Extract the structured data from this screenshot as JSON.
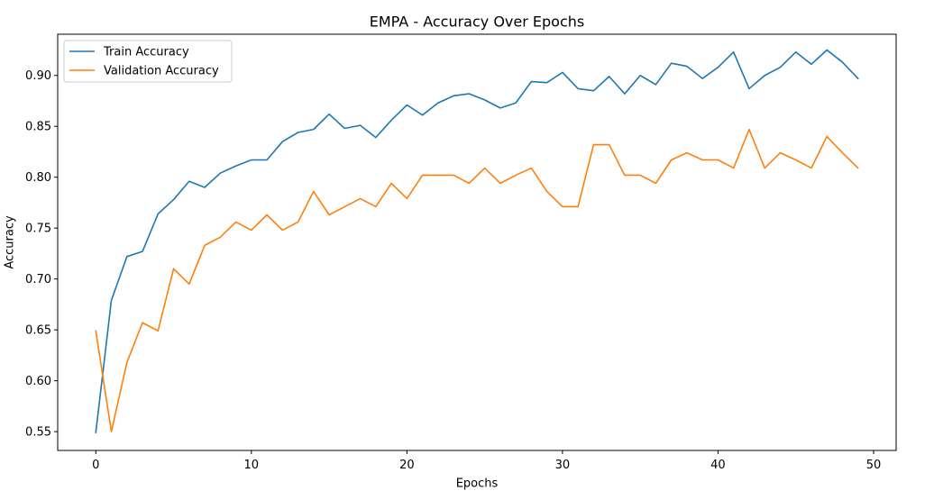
{
  "chart_data": {
    "type": "line",
    "title": "EMPA - Accuracy Over Epochs",
    "xlabel": "Epochs",
    "ylabel": "Accuracy",
    "xlim": [
      -2.45,
      51.45
    ],
    "ylim": [
      0.5315,
      0.9405
    ],
    "xticks": [
      0,
      10,
      20,
      30,
      40,
      50
    ],
    "yticks": [
      0.55,
      0.6,
      0.65,
      0.7,
      0.75,
      0.8,
      0.85,
      0.9
    ],
    "xtick_labels": [
      "0",
      "10",
      "20",
      "30",
      "40",
      "50"
    ],
    "ytick_labels": [
      "0.55",
      "0.60",
      "0.65",
      "0.70",
      "0.75",
      "0.80",
      "0.85",
      "0.90"
    ],
    "grid": false,
    "legend_position": "top-left",
    "x": [
      0,
      1,
      2,
      3,
      4,
      5,
      6,
      7,
      8,
      9,
      10,
      11,
      12,
      13,
      14,
      15,
      16,
      17,
      18,
      19,
      20,
      21,
      22,
      23,
      24,
      25,
      26,
      27,
      28,
      29,
      30,
      31,
      32,
      33,
      34,
      35,
      36,
      37,
      38,
      39,
      40,
      41,
      42,
      43,
      44,
      45,
      46,
      47,
      48,
      49
    ],
    "series": [
      {
        "name": "Train Accuracy",
        "color": "#1f77b4",
        "values": [
          0.549,
          0.679,
          0.722,
          0.727,
          0.764,
          0.778,
          0.796,
          0.79,
          0.804,
          0.811,
          0.817,
          0.817,
          0.835,
          0.844,
          0.847,
          0.862,
          0.848,
          0.851,
          0.839,
          0.856,
          0.871,
          0.861,
          0.873,
          0.88,
          0.882,
          0.876,
          0.868,
          0.873,
          0.894,
          0.893,
          0.903,
          0.887,
          0.885,
          0.899,
          0.882,
          0.9,
          0.891,
          0.912,
          0.909,
          0.897,
          0.908,
          0.923,
          0.887,
          0.9,
          0.908,
          0.923,
          0.911,
          0.925,
          0.913,
          0.897
        ]
      },
      {
        "name": "Validation Accuracy",
        "color": "#ff7f0e",
        "values": [
          0.649,
          0.55,
          0.618,
          0.657,
          0.649,
          0.71,
          0.695,
          0.733,
          0.741,
          0.756,
          0.748,
          0.763,
          0.748,
          0.756,
          0.786,
          0.763,
          0.771,
          0.779,
          0.771,
          0.794,
          0.779,
          0.802,
          0.802,
          0.802,
          0.794,
          0.809,
          0.794,
          0.802,
          0.809,
          0.786,
          0.771,
          0.771,
          0.832,
          0.832,
          0.802,
          0.802,
          0.794,
          0.817,
          0.824,
          0.817,
          0.817,
          0.809,
          0.847,
          0.809,
          0.824,
          0.817,
          0.809,
          0.84,
          0.824,
          0.809
        ]
      }
    ]
  }
}
